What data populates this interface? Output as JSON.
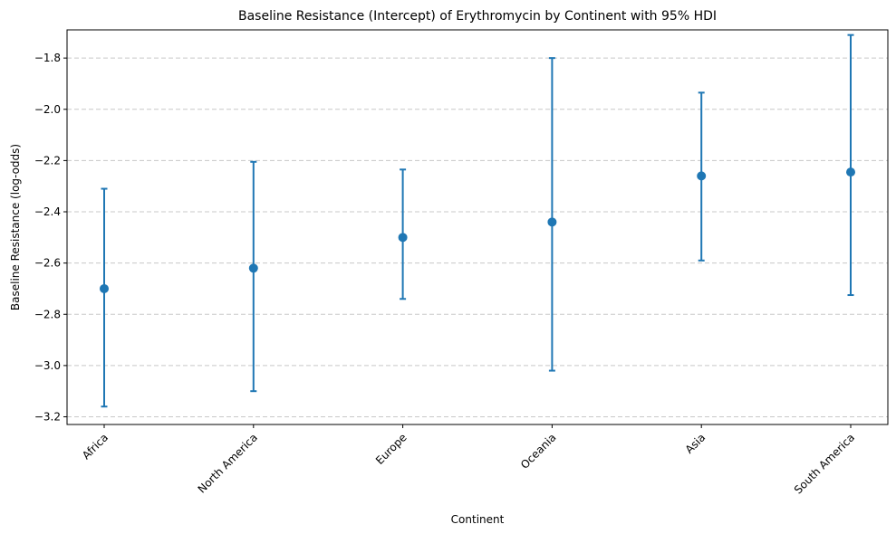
{
  "chart_data": {
    "type": "scatter",
    "title": "Baseline Resistance (Intercept) of Erythromycin by Continent with 95% HDI",
    "xlabel": "Continent",
    "ylabel": "Baseline Resistance (log-odds)",
    "categories": [
      "Africa",
      "North America",
      "Europe",
      "Oceania",
      "Asia",
      "South America"
    ],
    "values": [
      -2.7,
      -2.62,
      -2.5,
      -2.44,
      -2.26,
      -2.245
    ],
    "hdi_lower": [
      -3.16,
      -3.1,
      -2.74,
      -3.02,
      -2.59,
      -2.725
    ],
    "hdi_upper": [
      -2.31,
      -2.205,
      -2.235,
      -1.8,
      -1.935,
      -1.71
    ],
    "ylim": [
      -3.23,
      -1.69
    ],
    "yticks": [
      -3.2,
      -3.0,
      -2.8,
      -2.6,
      -2.4,
      -2.2,
      -2.0,
      -1.8
    ],
    "ytick_labels": [
      "−3.2",
      "−3.0",
      "−2.8",
      "−2.6",
      "−2.4",
      "−2.2",
      "−2.0",
      "−1.8"
    ],
    "grid": "horizontal dashed",
    "legend": "none",
    "colors": {
      "series": "#1f77b4",
      "grid": "#c8c8c8",
      "axis": "#000000"
    }
  }
}
